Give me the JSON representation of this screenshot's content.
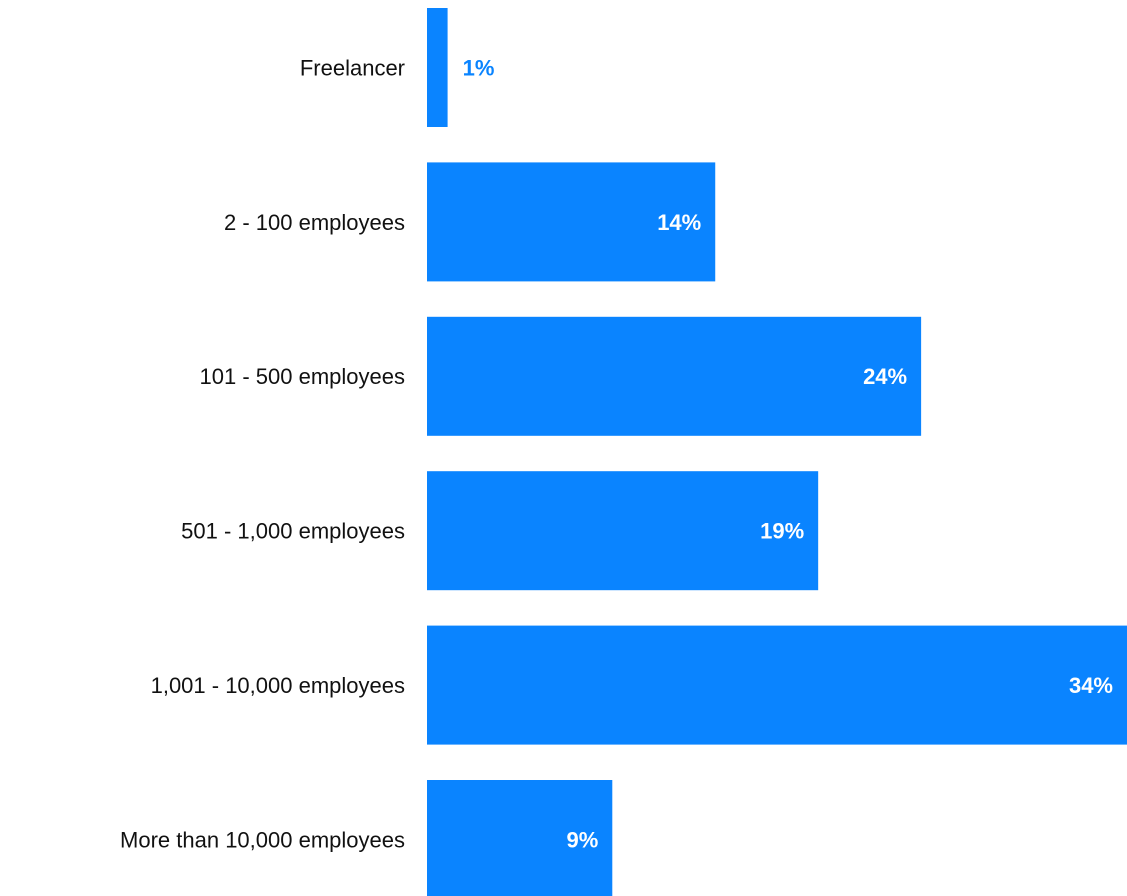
{
  "chart_data": {
    "type": "bar",
    "orientation": "horizontal",
    "categories": [
      "Freelancer",
      "2 - 100 employees",
      "101 - 500 employees",
      "501 - 1,000 employees",
      "1,001 - 10,000 employees",
      "More than 10,000 employees"
    ],
    "values": [
      1,
      14,
      24,
      19,
      34,
      9
    ],
    "value_labels": [
      "1%",
      "14%",
      "24%",
      "19%",
      "34%",
      "9%"
    ],
    "title": "",
    "xlabel": "",
    "ylabel": "",
    "xlim": [
      0,
      34
    ],
    "grid": false,
    "legend": "none",
    "colors": {
      "bar": "#0a84ff",
      "label_inside": "#ffffff",
      "label_outside": "#0a84ff",
      "category_text": "#111111",
      "background": "#ffffff"
    }
  }
}
